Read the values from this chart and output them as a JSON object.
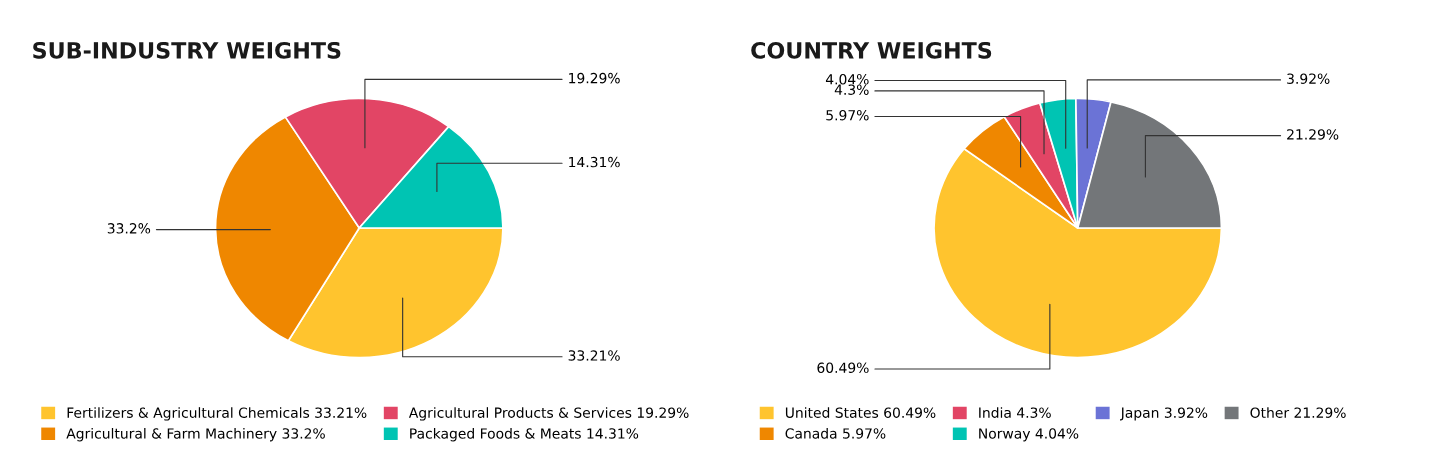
{
  "chart_data": [
    {
      "type": "pie",
      "title": "SUB-INDUSTRY WEIGHTS",
      "categories": [
        "Fertilizers & Agricultural Chemicals",
        "Agricultural & Farm Machinery",
        "Agricultural Products & Services",
        "Packaged Foods & Meats"
      ],
      "values": [
        33.21,
        33.2,
        19.29,
        14.31
      ],
      "value_labels": [
        "33.21%",
        "33.2%",
        "19.29%",
        "14.31%"
      ],
      "colors": [
        "#ffc42e",
        "#ef8700",
        "#e24565",
        "#00c4b3"
      ],
      "legend": "bottom"
    },
    {
      "type": "pie",
      "title": "COUNTRY WEIGHTS",
      "categories": [
        "United States",
        "Canada",
        "India",
        "Norway",
        "Japan",
        "Other"
      ],
      "values": [
        60.49,
        5.97,
        4.3,
        4.04,
        3.92,
        21.29
      ],
      "value_labels": [
        "60.49%",
        "5.97%",
        "4.3%",
        "4.04%",
        "3.92%",
        "21.29%"
      ],
      "colors": [
        "#ffc42e",
        "#ef8700",
        "#e24565",
        "#00c4b3",
        "#6b73d6",
        "#737679"
      ],
      "legend": "bottom"
    }
  ]
}
